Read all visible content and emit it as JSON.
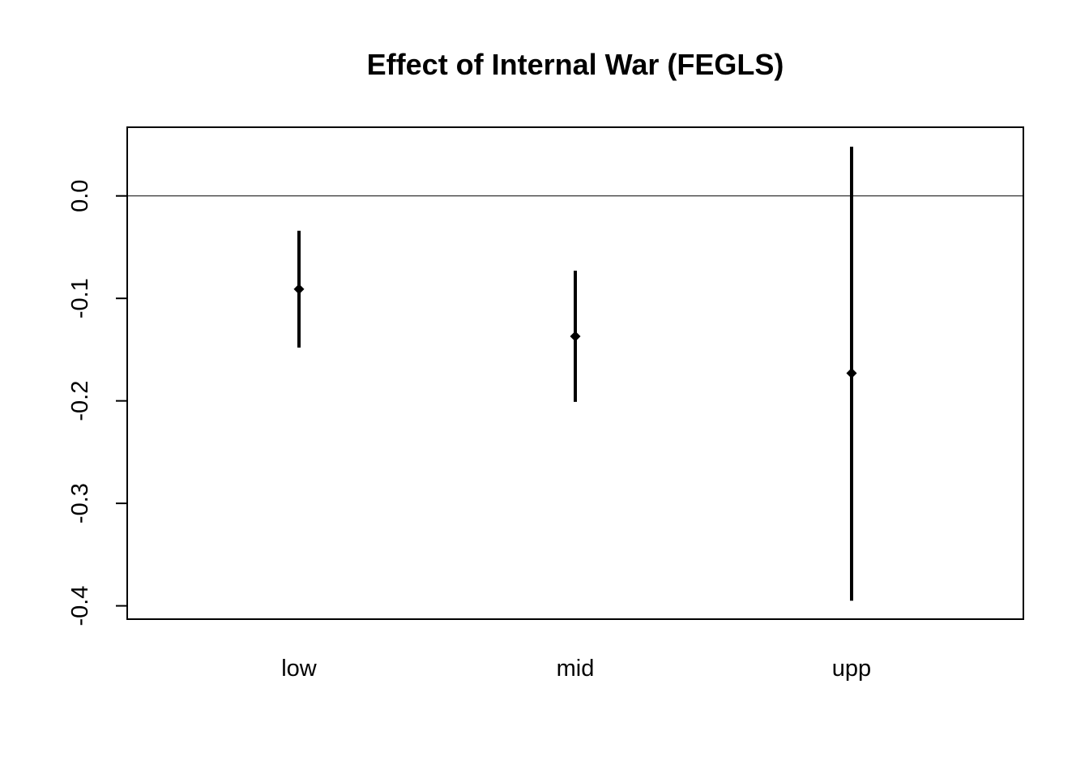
{
  "chart_data": {
    "type": "scatter",
    "title": "Effect of Internal War (FEGLS)",
    "xlabel": "",
    "ylabel": "",
    "categories": [
      "low",
      "mid",
      "upp"
    ],
    "estimates": [
      -0.091,
      -0.137,
      -0.173
    ],
    "lower": [
      -0.148,
      -0.201,
      -0.395
    ],
    "upper": [
      -0.034,
      -0.073,
      0.048
    ],
    "yticks": [
      "-0.4",
      "-0.3",
      "-0.2",
      "-0.1",
      "0.0"
    ],
    "ylim": [
      -0.413,
      0.067
    ],
    "reference_line": 0,
    "grid": false,
    "legend": "none",
    "colors": {
      "marks": "#000000",
      "background": "#ffffff"
    }
  }
}
